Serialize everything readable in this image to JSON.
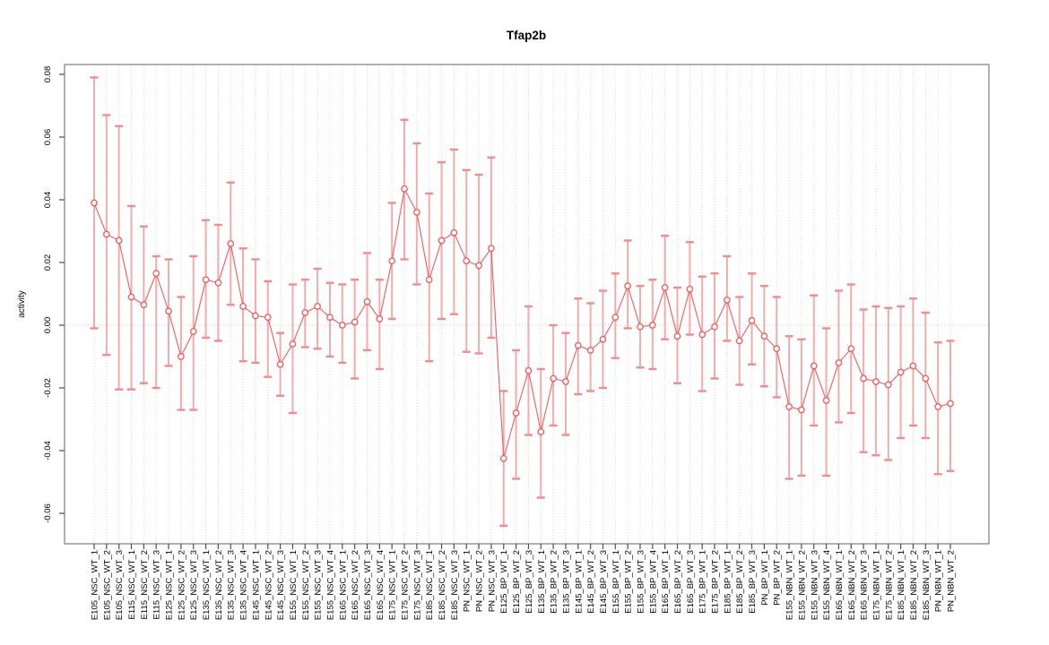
{
  "window": {
    "background": "#ffffff"
  },
  "chart_data": {
    "type": "line",
    "title": "Tfap2b",
    "xlabel": "",
    "ylabel": "activity",
    "legend": "none",
    "grid": "dotted vertical gridline per category; dotted horizontal line at y=0",
    "marker": "open-circle",
    "error_bars": true,
    "ylim": [
      -0.07,
      0.083
    ],
    "yticks": [
      -0.06,
      -0.04,
      -0.02,
      0.0,
      0.02,
      0.04,
      0.06,
      0.08
    ],
    "ytick_labels": [
      "-0.06",
      "-0.04",
      "-0.02",
      "0.00",
      "0.02",
      "0.04",
      "0.06",
      "0.08"
    ],
    "colors": {
      "line": "#ee5b5b",
      "marker_stroke": "#ee5b5b",
      "marker_fill": "#ffffff",
      "error_bar_stem": "#f19999",
      "error_bar_cap": "#ef8d8d",
      "gridline": "#d8d8d8",
      "zero_line": "#d0d0d0",
      "box": "#878787",
      "tick": "#4d4d4d",
      "text": "#000000"
    },
    "categories": [
      "E105_NSC_WT_1",
      "E105_NSC_WT_2",
      "E105_NSC_WT_3",
      "E115_NSC_WT_1",
      "E115_NSC_WT_2",
      "E115_NSC_WT_3",
      "E125_NSC_WT_1",
      "E125_NSC_WT_2",
      "E125_NSC_WT_3",
      "E135_NSC_WT_1",
      "E135_NSC_WT_2",
      "E135_NSC_WT_3",
      "E135_NSC_WT_4",
      "E145_NSC_WT_1",
      "E145_NSC_WT_2",
      "E145_NSC_WT_3",
      "E155_NSC_WT_1",
      "E155_NSC_WT_2",
      "E155_NSC_WT_3",
      "E155_NSC_WT_4",
      "E165_NSC_WT_1",
      "E165_NSC_WT_2",
      "E165_NSC_WT_3",
      "E165_NSC_WT_4",
      "E175_NSC_WT_1",
      "E175_NSC_WT_2",
      "E175_NSC_WT_3",
      "E185_NSC_WT_1",
      "E185_NSC_WT_2",
      "E185_NSC_WT_3",
      "PN_NSC_WT_1",
      "PN_NSC_WT_2",
      "PN_NSC_WT_3",
      "E125_BP_WT_1",
      "E125_BP_WT_2",
      "E125_BP_WT_3",
      "E135_BP_WT_1",
      "E135_BP_WT_2",
      "E135_BP_WT_3",
      "E145_BP_WT_1",
      "E145_BP_WT_2",
      "E145_BP_WT_3",
      "E155_BP_WT_1",
      "E155_BP_WT_2",
      "E155_BP_WT_3",
      "E155_BP_WT_4",
      "E165_BP_WT_1",
      "E165_BP_WT_2",
      "E165_BP_WT_3",
      "E175_BP_WT_1",
      "E175_BP_WT_2",
      "E185_BP_WT_1",
      "E185_BP_WT_2",
      "E185_BP_WT_3",
      "PN_BP_WT_1",
      "PN_BP_WT_2",
      "E155_NBN_WT_1",
      "E155_NBN_WT_2",
      "E155_NBN_WT_3",
      "E155_NBN_WT_4",
      "E165_NBN_WT_1",
      "E165_NBN_WT_2",
      "E165_NBN_WT_3",
      "E175_NBN_WT_1",
      "E175_NBN_WT_2",
      "E185_NBN_WT_1",
      "E185_NBN_WT_2",
      "E185_NBN_WT_3",
      "PN_NBN_WT_1",
      "PN_NBN_WT_2"
    ],
    "series": [
      {
        "name": "mean activity",
        "values": [
          0.039,
          0.029,
          0.027,
          0.009,
          0.0065,
          0.0165,
          0.0045,
          -0.01,
          -0.002,
          0.0145,
          0.0135,
          0.026,
          0.006,
          0.003,
          0.0025,
          -0.0125,
          -0.006,
          0.004,
          0.006,
          0.0025,
          0.0,
          0.001,
          0.0075,
          0.002,
          0.0205,
          0.0435,
          0.036,
          0.0145,
          0.027,
          0.0295,
          0.0205,
          0.019,
          0.0245,
          -0.0425,
          -0.028,
          -0.0145,
          -0.034,
          -0.017,
          -0.018,
          -0.0065,
          -0.008,
          -0.0045,
          0.0025,
          0.0125,
          -0.0005,
          0.0,
          0.012,
          -0.0035,
          0.0115,
          -0.003,
          -0.0005,
          0.008,
          -0.005,
          0.0015,
          -0.0035,
          -0.0075,
          -0.026,
          -0.027,
          -0.013,
          -0.024,
          -0.012,
          -0.0075,
          -0.017,
          -0.018,
          -0.019,
          -0.015,
          -0.013,
          -0.017,
          -0.026,
          -0.025
        ]
      },
      {
        "name": "error lower",
        "values": [
          -0.001,
          -0.0095,
          -0.0205,
          -0.0205,
          -0.0185,
          -0.02,
          -0.013,
          -0.027,
          -0.027,
          -0.004,
          -0.005,
          0.0065,
          -0.0115,
          -0.012,
          -0.0165,
          -0.0225,
          -0.028,
          -0.007,
          -0.0075,
          -0.01,
          -0.012,
          -0.017,
          -0.008,
          -0.014,
          0.002,
          0.021,
          0.013,
          -0.0115,
          0.002,
          0.0035,
          -0.0085,
          -0.009,
          -0.004,
          -0.064,
          -0.049,
          -0.035,
          -0.055,
          -0.032,
          -0.035,
          -0.022,
          -0.021,
          -0.02,
          -0.0105,
          -0.001,
          -0.0135,
          -0.014,
          -0.0045,
          -0.0185,
          -0.003,
          -0.021,
          -0.017,
          -0.005,
          -0.019,
          -0.0125,
          -0.0195,
          -0.023,
          -0.049,
          -0.048,
          -0.032,
          -0.048,
          -0.031,
          -0.028,
          -0.0405,
          -0.0415,
          -0.043,
          -0.036,
          -0.032,
          -0.036,
          -0.0475,
          -0.0465
        ]
      },
      {
        "name": "error upper",
        "values": [
          0.079,
          0.067,
          0.0635,
          0.038,
          0.0315,
          0.022,
          0.021,
          0.009,
          0.022,
          0.0335,
          0.032,
          0.0455,
          0.0245,
          0.021,
          0.014,
          -0.0025,
          0.013,
          0.0145,
          0.018,
          0.0135,
          0.013,
          0.0145,
          0.023,
          0.0145,
          0.039,
          0.0655,
          0.058,
          0.042,
          0.052,
          0.056,
          0.0495,
          0.048,
          0.0535,
          -0.021,
          -0.008,
          0.006,
          -0.014,
          0.0,
          -0.0025,
          0.0085,
          0.007,
          0.011,
          0.0165,
          0.027,
          0.0125,
          0.0145,
          0.0285,
          0.012,
          0.0265,
          0.0155,
          0.0165,
          0.022,
          0.009,
          0.0165,
          0.0125,
          0.009,
          -0.0035,
          -0.0045,
          0.0095,
          -0.001,
          0.011,
          0.013,
          0.005,
          0.006,
          0.0055,
          0.006,
          0.0085,
          0.004,
          -0.0055,
          -0.005
        ]
      }
    ]
  }
}
